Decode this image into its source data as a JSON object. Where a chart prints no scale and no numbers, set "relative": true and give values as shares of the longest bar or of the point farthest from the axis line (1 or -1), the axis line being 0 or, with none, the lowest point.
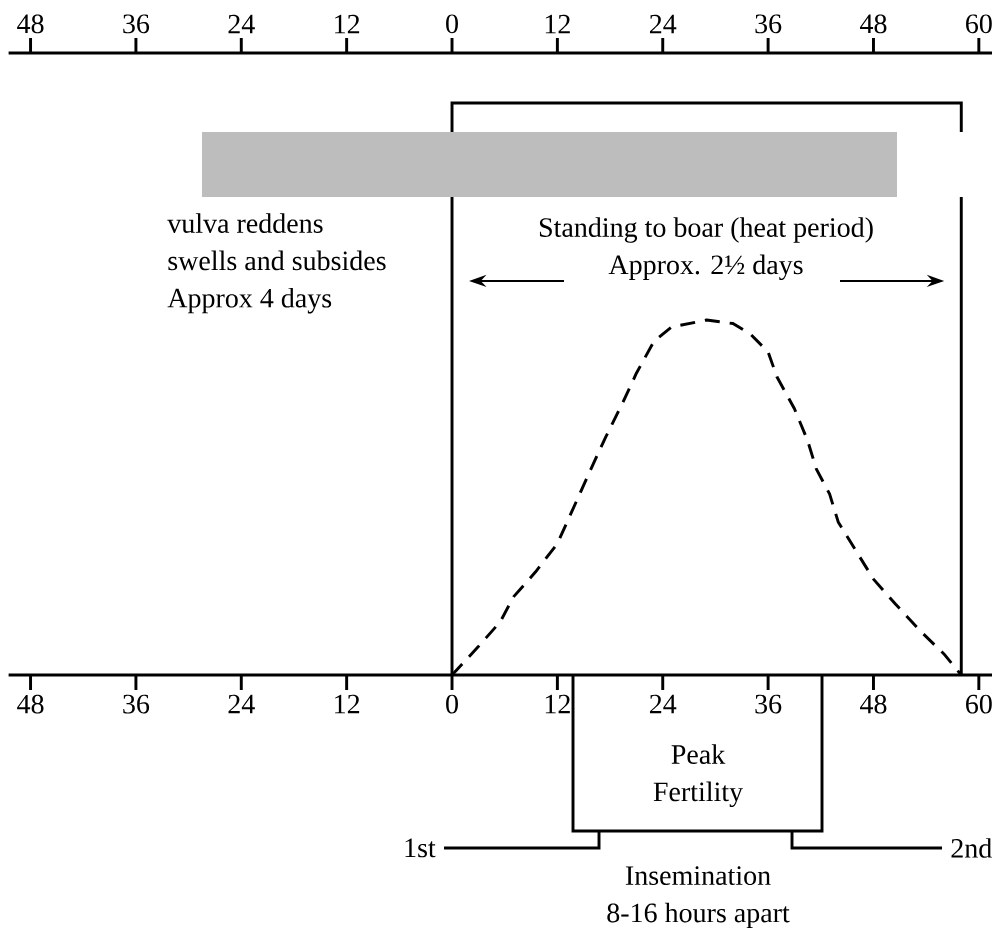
{
  "chart_data": {
    "type": "line",
    "relative": true,
    "line_style": "dashed",
    "x": [
      0,
      3,
      5.5,
      7,
      9.5,
      12,
      14,
      16,
      17.5,
      19.5,
      21,
      23,
      25,
      29,
      32,
      34,
      36,
      37,
      39,
      40.5,
      41.5,
      43,
      44,
      46,
      48,
      50.5,
      53.5,
      56,
      58
    ],
    "series": [
      {
        "color": "#000000",
        "values": [
          0,
          0.08,
          0.15,
          0.22,
          0.29,
          0.37,
          0.48,
          0.59,
          0.67,
          0.77,
          0.85,
          0.94,
          0.98,
          1,
          0.99,
          0.96,
          0.91,
          0.84,
          0.75,
          0.66,
          0.58,
          0.51,
          0.43,
          0.35,
          0.27,
          0.2,
          0.12,
          0.06,
          0
        ]
      }
    ],
    "xlim": [
      -50.5,
      61.5
    ],
    "xticks": [
      {
        "value": -48,
        "label": "48"
      },
      {
        "value": -36,
        "label": "36"
      },
      {
        "value": -24,
        "label": "24"
      },
      {
        "value": -12,
        "label": "12"
      },
      0,
      12,
      24,
      36,
      48,
      60
    ],
    "x2lim": [
      -50.5,
      61.5
    ],
    "x2ticks": [
      {
        "value": -48,
        "label": "48"
      },
      {
        "value": -36,
        "label": "36"
      },
      {
        "value": -24,
        "label": "24"
      },
      {
        "value": -12,
        "label": "12"
      },
      0,
      12,
      24,
      36,
      48,
      60
    ],
    "ref_lines": [
      {
        "axis": "x",
        "value": 0
      },
      {
        "axis": "x",
        "value": 58
      }
    ],
    "annotations": [
      "vulva reddens swells and subsides Approx 4 days",
      "Standing to boar (heat period) Approx. 2½ days",
      "Peak Fertility",
      "1st",
      "2nd",
      "Insemination 8-16 hours apart"
    ]
  }
}
